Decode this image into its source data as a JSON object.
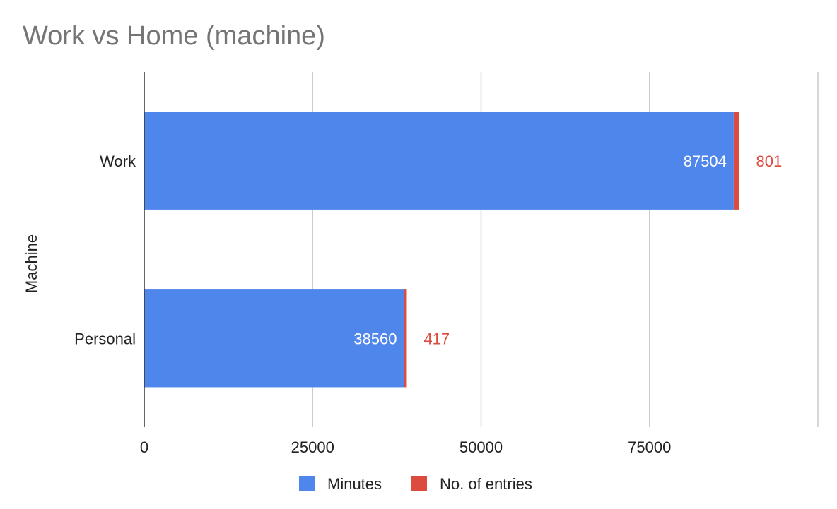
{
  "chart_data": {
    "type": "bar",
    "orientation": "horizontal",
    "stacked": true,
    "title": "Work vs Home (machine)",
    "ylabel": "Machine",
    "xlabel": "",
    "categories": [
      "Work",
      "Personal"
    ],
    "series": [
      {
        "name": "Minutes",
        "values": [
          87504,
          38560
        ],
        "color": "#4f86ec"
      },
      {
        "name": "No. of entries",
        "values": [
          801,
          417
        ],
        "color": "#dd4b3e"
      }
    ],
    "x_ticks": [
      "0",
      "25000",
      "50000",
      "75000"
    ],
    "xlim": [
      0,
      100000
    ],
    "grid": true,
    "legend_position": "bottom"
  }
}
